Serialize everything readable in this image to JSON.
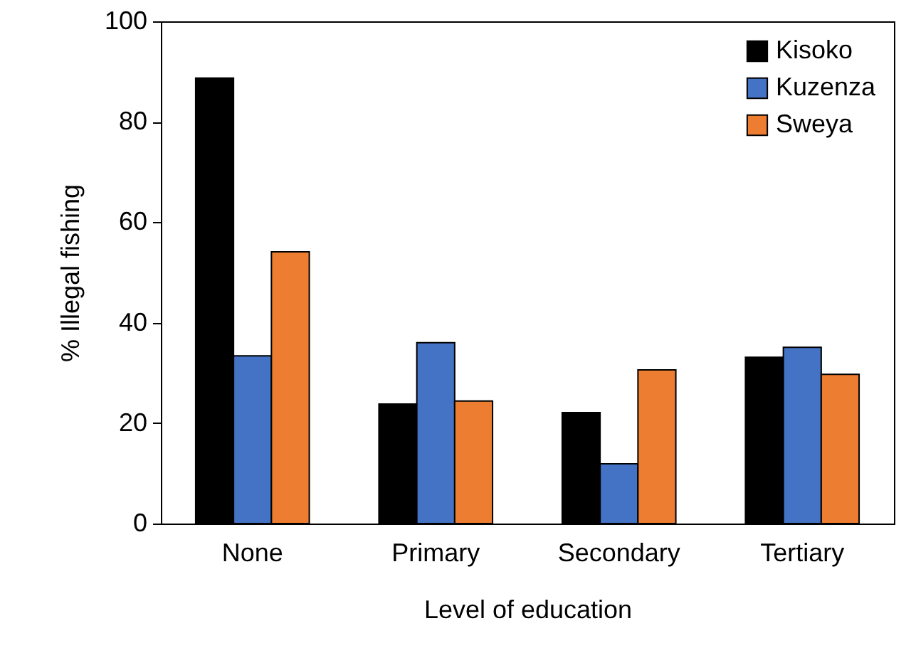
{
  "chart_data": {
    "type": "bar",
    "xlabel": "Level of education",
    "ylabel": "% Illegal fishing",
    "categories": [
      "None",
      "Primary",
      "Secondary",
      "Tertiary"
    ],
    "series": [
      {
        "name": "Kisoko",
        "color": "#000000",
        "values": [
          88.7,
          23.8,
          22.1,
          33.1
        ]
      },
      {
        "name": "Kuzenza",
        "color": "#4472c4",
        "values": [
          33.4,
          36,
          11.9,
          35.1
        ]
      },
      {
        "name": "Sweya",
        "color": "#ed7d31",
        "values": [
          54.1,
          24.4,
          30.6,
          29.7
        ]
      }
    ],
    "ylim": [
      0,
      100
    ],
    "yticks": [
      0,
      20,
      40,
      60,
      80,
      100
    ],
    "grid": false,
    "legend": "top right"
  }
}
